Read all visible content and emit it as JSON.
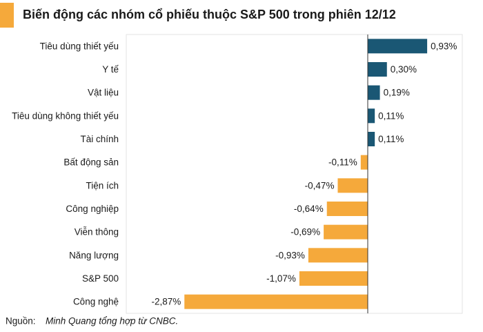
{
  "chart_data": {
    "type": "barh",
    "title": "Biến động các nhóm cổ phiếu thuộc S&P 500 trong phiên 12/12",
    "categories": [
      "Tiêu dùng thiết yếu",
      "Y tế",
      "Vật liệu",
      "Tiêu dùng không thiết yếu",
      "Tài chính",
      "Bất động sản",
      "Tiện ích",
      "Công nghiệp",
      "Viễn thông",
      "Năng lượng",
      "S&P 500",
      "Công nghệ"
    ],
    "values": [
      0.93,
      0.3,
      0.19,
      0.11,
      0.11,
      -0.11,
      -0.47,
      -0.64,
      -0.69,
      -0.93,
      -1.07,
      -2.87
    ],
    "value_labels": [
      "0,93%",
      "0,30%",
      "0,19%",
      "0,11%",
      "0,11%",
      "-0,11%",
      "-0,47%",
      "-0,64%",
      "-0,69%",
      "-0,93%",
      "-1,07%",
      "-2,87%"
    ],
    "positive_color": "#1a5774",
    "negative_color": "#f5a93b",
    "xlim": [
      -3.78,
      1.48
    ],
    "source_label": "Nguồn:",
    "source_text": "Minh Quang tổng hợp từ CNBC."
  }
}
